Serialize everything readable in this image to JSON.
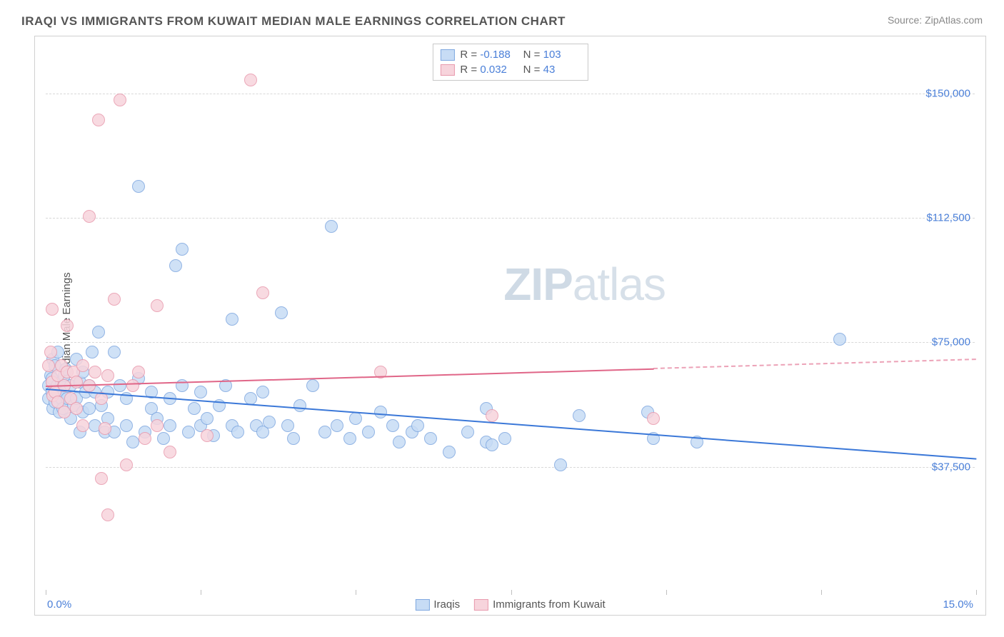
{
  "header": {
    "title": "IRAQI VS IMMIGRANTS FROM KUWAIT MEDIAN MALE EARNINGS CORRELATION CHART",
    "source": "Source: ZipAtlas.com"
  },
  "watermark": {
    "zip": "ZIP",
    "atlas": "atlas"
  },
  "chart": {
    "type": "scatter",
    "y_axis_label": "Median Male Earnings",
    "xlim": [
      0,
      15
    ],
    "ylim": [
      0,
      165000
    ],
    "x_ticks": [
      0,
      2.5,
      5,
      7.5,
      10,
      12.5,
      15
    ],
    "x_tick_labels": {
      "0": "0.0%",
      "15": "15.0%"
    },
    "y_gridlines": [
      37500,
      75000,
      112500,
      150000
    ],
    "y_tick_labels": [
      "$37,500",
      "$75,000",
      "$112,500",
      "$150,000"
    ],
    "background_color": "#ffffff",
    "grid_color": "#d8d8d8",
    "tick_label_color": "#4a7fd8",
    "axis_label_color": "#555555",
    "series": [
      {
        "name": "Iraqis",
        "marker_fill": "#c7dcf5",
        "marker_stroke": "#7fa8e0",
        "marker_radius": 9,
        "line_color": "#3b78d8",
        "R": "-0.188",
        "N": "103",
        "trend": {
          "x1": 0,
          "y1": 61000,
          "x2": 15,
          "y2": 40000,
          "solid_to_x": 15
        },
        "points": [
          [
            0.05,
            62000
          ],
          [
            0.05,
            58000
          ],
          [
            0.08,
            65000
          ],
          [
            0.1,
            60000
          ],
          [
            0.1,
            64000
          ],
          [
            0.12,
            55000
          ],
          [
            0.12,
            70000
          ],
          [
            0.15,
            68000
          ],
          [
            0.15,
            57000
          ],
          [
            0.18,
            62000
          ],
          [
            0.2,
            60000
          ],
          [
            0.2,
            72000
          ],
          [
            0.22,
            54000
          ],
          [
            0.25,
            63000
          ],
          [
            0.25,
            58000
          ],
          [
            0.28,
            55000
          ],
          [
            0.3,
            60000
          ],
          [
            0.3,
            65000
          ],
          [
            0.32,
            67000
          ],
          [
            0.35,
            58000
          ],
          [
            0.4,
            62000
          ],
          [
            0.4,
            52000
          ],
          [
            0.45,
            56000
          ],
          [
            0.5,
            70000
          ],
          [
            0.5,
            58000
          ],
          [
            0.55,
            48000
          ],
          [
            0.55,
            63000
          ],
          [
            0.6,
            66000
          ],
          [
            0.6,
            54000
          ],
          [
            0.65,
            60000
          ],
          [
            0.7,
            55000
          ],
          [
            0.7,
            62000
          ],
          [
            0.75,
            72000
          ],
          [
            0.8,
            50000
          ],
          [
            0.8,
            60000
          ],
          [
            0.85,
            78000
          ],
          [
            0.9,
            56000
          ],
          [
            0.95,
            48000
          ],
          [
            1.0,
            52000
          ],
          [
            1.0,
            60000
          ],
          [
            1.1,
            72000
          ],
          [
            1.1,
            48000
          ],
          [
            1.2,
            62000
          ],
          [
            1.3,
            50000
          ],
          [
            1.3,
            58000
          ],
          [
            1.4,
            45000
          ],
          [
            1.5,
            64000
          ],
          [
            1.5,
            122000
          ],
          [
            1.6,
            48000
          ],
          [
            1.7,
            55000
          ],
          [
            1.7,
            60000
          ],
          [
            1.8,
            52000
          ],
          [
            1.9,
            46000
          ],
          [
            2.0,
            58000
          ],
          [
            2.0,
            50000
          ],
          [
            2.1,
            98000
          ],
          [
            2.2,
            103000
          ],
          [
            2.2,
            62000
          ],
          [
            2.3,
            48000
          ],
          [
            2.4,
            55000
          ],
          [
            2.5,
            50000
          ],
          [
            2.5,
            60000
          ],
          [
            2.6,
            52000
          ],
          [
            2.7,
            47000
          ],
          [
            2.8,
            56000
          ],
          [
            2.9,
            62000
          ],
          [
            3.0,
            50000
          ],
          [
            3.0,
            82000
          ],
          [
            3.1,
            48000
          ],
          [
            3.3,
            58000
          ],
          [
            3.4,
            50000
          ],
          [
            3.5,
            48000
          ],
          [
            3.5,
            60000
          ],
          [
            3.6,
            51000
          ],
          [
            3.8,
            84000
          ],
          [
            3.9,
            50000
          ],
          [
            4.0,
            46000
          ],
          [
            4.1,
            56000
          ],
          [
            4.3,
            62000
          ],
          [
            4.5,
            48000
          ],
          [
            4.6,
            110000
          ],
          [
            4.7,
            50000
          ],
          [
            4.9,
            46000
          ],
          [
            5.0,
            52000
          ],
          [
            5.2,
            48000
          ],
          [
            5.4,
            54000
          ],
          [
            5.6,
            50000
          ],
          [
            5.7,
            45000
          ],
          [
            5.9,
            48000
          ],
          [
            6.0,
            50000
          ],
          [
            6.2,
            46000
          ],
          [
            6.5,
            42000
          ],
          [
            6.8,
            48000
          ],
          [
            7.1,
            55000
          ],
          [
            7.1,
            45000
          ],
          [
            7.2,
            44000
          ],
          [
            7.4,
            46000
          ],
          [
            8.3,
            38000
          ],
          [
            8.6,
            53000
          ],
          [
            9.7,
            54000
          ],
          [
            9.8,
            46000
          ],
          [
            10.5,
            45000
          ],
          [
            12.8,
            76000
          ]
        ]
      },
      {
        "name": "Immigrants from Kuwait",
        "marker_fill": "#f7d4dc",
        "marker_stroke": "#e89aad",
        "marker_radius": 9,
        "line_color": "#e06688",
        "R": "0.032",
        "N": "43",
        "trend": {
          "x1": 0,
          "y1": 62000,
          "x2": 15,
          "y2": 70000,
          "solid_to_x": 9.8
        },
        "points": [
          [
            0.05,
            68000
          ],
          [
            0.08,
            72000
          ],
          [
            0.1,
            63000
          ],
          [
            0.1,
            85000
          ],
          [
            0.12,
            59000
          ],
          [
            0.15,
            60000
          ],
          [
            0.2,
            65000
          ],
          [
            0.2,
            57000
          ],
          [
            0.25,
            68000
          ],
          [
            0.3,
            62000
          ],
          [
            0.3,
            54000
          ],
          [
            0.35,
            66000
          ],
          [
            0.35,
            80000
          ],
          [
            0.4,
            58000
          ],
          [
            0.45,
            66000
          ],
          [
            0.5,
            63000
          ],
          [
            0.5,
            55000
          ],
          [
            0.6,
            68000
          ],
          [
            0.6,
            50000
          ],
          [
            0.7,
            62000
          ],
          [
            0.7,
            113000
          ],
          [
            0.8,
            66000
          ],
          [
            0.85,
            142000
          ],
          [
            0.9,
            58000
          ],
          [
            0.9,
            34000
          ],
          [
            0.95,
            49000
          ],
          [
            1.0,
            65000
          ],
          [
            1.0,
            23000
          ],
          [
            1.1,
            88000
          ],
          [
            1.2,
            148000
          ],
          [
            1.3,
            38000
          ],
          [
            1.4,
            62000
          ],
          [
            1.5,
            66000
          ],
          [
            1.6,
            46000
          ],
          [
            1.8,
            50000
          ],
          [
            1.8,
            86000
          ],
          [
            2.0,
            42000
          ],
          [
            2.6,
            47000
          ],
          [
            3.3,
            154000
          ],
          [
            3.5,
            90000
          ],
          [
            5.4,
            66000
          ],
          [
            7.2,
            53000
          ],
          [
            9.8,
            52000
          ]
        ]
      }
    ],
    "legend_top": {
      "rows": [
        {
          "swatch_fill": "#c7dcf5",
          "swatch_stroke": "#7fa8e0",
          "r_label": "R =",
          "r_val": "-0.188",
          "n_label": "N =",
          "n_val": "103"
        },
        {
          "swatch_fill": "#f7d4dc",
          "swatch_stroke": "#e89aad",
          "r_label": "R =",
          "r_val": "0.032",
          "n_label": "N =",
          "n_val": "43"
        }
      ]
    },
    "legend_bottom": {
      "items": [
        {
          "swatch_fill": "#c7dcf5",
          "swatch_stroke": "#7fa8e0",
          "label": "Iraqis"
        },
        {
          "swatch_fill": "#f7d4dc",
          "swatch_stroke": "#e89aad",
          "label": "Immigrants from Kuwait"
        }
      ]
    }
  }
}
